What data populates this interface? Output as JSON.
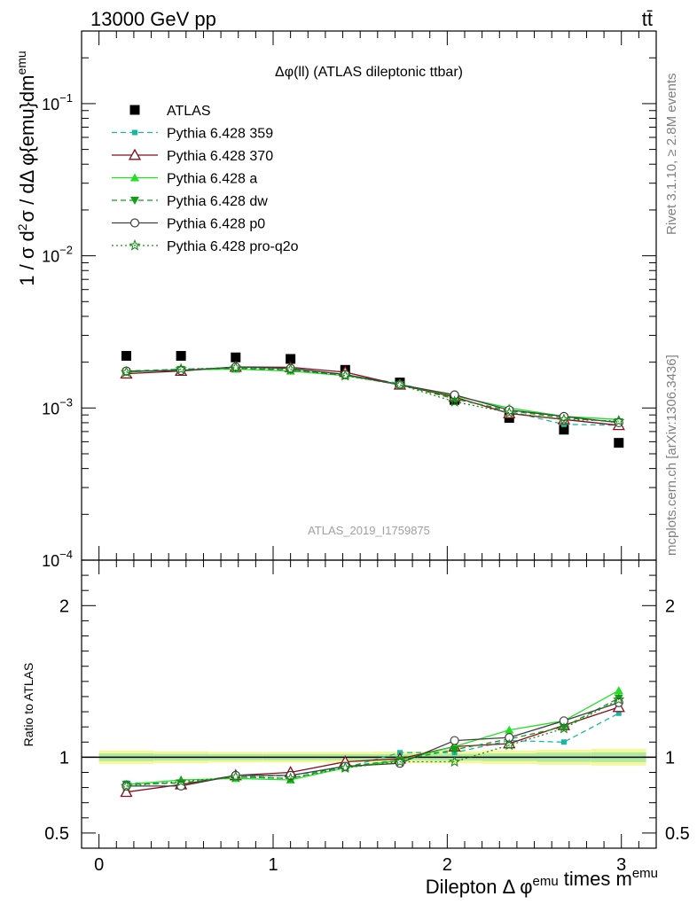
{
  "header": {
    "left_label": "13000 GeV pp",
    "right_label": "tt̄"
  },
  "side_labels": {
    "rivet": "Rivet 3.1.10, ≥ 2.8M events",
    "mcplots": "mcplots.cern.ch [arXiv:1306.3436]"
  },
  "colors": {
    "ATLAS": "#000000",
    "p359": "#17b8a0",
    "p370": "#8b0a1e",
    "pa": "#22e022",
    "pdw": "#0ea017",
    "pp0": "#404040",
    "pq2o": "#1c8a1c",
    "band_inner": "#aeeaa0",
    "band_outer": "#f4f79c"
  },
  "chart_data": [
    {
      "type": "line",
      "panel": "main",
      "title": "Δφ(ll) (ATLAS dileptonic ttbar)",
      "watermark": "ATLAS_2019_I1759875",
      "ylabel": "1 / σ  d²σ / dΔ φ{emu}dm^emu",
      "yscale": "log",
      "ylim": [
        0.0001,
        0.3
      ],
      "xlim": [
        -0.1,
        3.2
      ],
      "y_tick_labels": [
        {
          "value": 0.1,
          "base": "10",
          "exp": "−1"
        },
        {
          "value": 0.01,
          "base": "10",
          "exp": "−2"
        },
        {
          "value": 0.001,
          "base": "10",
          "exp": "−3"
        },
        {
          "value": 0.0001,
          "base": "10",
          "exp": "−4"
        }
      ],
      "x": [
        0.157,
        0.471,
        0.785,
        1.1,
        1.414,
        1.728,
        2.042,
        2.356,
        2.67,
        2.985
      ],
      "series": [
        {
          "key": "ATLAS",
          "name": "ATLAS",
          "marker": "square",
          "dash": "none",
          "values": [
            0.0022,
            0.0022,
            0.00215,
            0.0021,
            0.00178,
            0.00147,
            0.00113,
            0.00086,
            0.00072,
            0.00059
          ]
        },
        {
          "key": "p359",
          "name": "Pythia 6.428 359",
          "marker": "smallsquare",
          "dash": "6,4",
          "values": [
            0.00175,
            0.0018,
            0.00183,
            0.00178,
            0.00165,
            0.00145,
            0.00115,
            0.00095,
            0.00078,
            0.00077
          ]
        },
        {
          "key": "p370",
          "name": "Pythia 6.428 370",
          "marker": "triangle-open",
          "dash": "none",
          "values": [
            0.00168,
            0.00175,
            0.00186,
            0.00185,
            0.00172,
            0.00142,
            0.00118,
            0.00092,
            0.00084,
            0.00077
          ]
        },
        {
          "key": "pa",
          "name": "Pythia 6.428 a",
          "marker": "triangle",
          "dash": "none",
          "values": [
            0.00172,
            0.00178,
            0.0018,
            0.00175,
            0.00163,
            0.00143,
            0.0012,
            0.001,
            0.00088,
            0.00084
          ]
        },
        {
          "key": "pdw",
          "name": "Pythia 6.428 dw",
          "marker": "triangle-down",
          "dash": "6,4",
          "values": [
            0.00173,
            0.00179,
            0.00182,
            0.00177,
            0.00164,
            0.00142,
            0.00115,
            0.00096,
            0.00086,
            0.00081
          ]
        },
        {
          "key": "pp0",
          "name": "Pythia 6.428 p0",
          "marker": "circle-open",
          "dash": "none",
          "values": [
            0.00175,
            0.00176,
            0.00186,
            0.00182,
            0.00166,
            0.00142,
            0.00122,
            0.00097,
            0.00088,
            0.0008
          ]
        },
        {
          "key": "pq2o",
          "name": "Pythia 6.428 pro-q2o",
          "marker": "star",
          "dash": "2,3",
          "values": [
            0.00172,
            0.0018,
            0.00184,
            0.00179,
            0.00163,
            0.00142,
            0.0011,
            0.00093,
            0.00084,
            0.00082
          ]
        }
      ]
    },
    {
      "type": "line",
      "panel": "ratio",
      "ylabel": "Ratio to ATLAS",
      "xlabel": "Dilepton Δ φ^emu times m^emu",
      "ylim": [
        0.4,
        2.3
      ],
      "xlim": [
        -0.1,
        3.2
      ],
      "y_tick_labels": [
        "0.5",
        "1",
        "2"
      ],
      "y_tick_values": [
        0.5,
        1,
        2
      ],
      "x_tick_labels": [
        "0",
        "1",
        "2",
        "3"
      ],
      "x_tick_values": [
        0,
        1,
        2,
        3
      ],
      "x": [
        0.157,
        0.471,
        0.785,
        1.1,
        1.414,
        1.728,
        2.042,
        2.356,
        2.67,
        2.985
      ],
      "bands": {
        "outer_low": [
          0.955,
          0.96,
          0.965,
          0.965,
          0.965,
          0.962,
          0.96,
          0.955,
          0.95,
          0.945
        ],
        "outer_high": [
          1.045,
          1.04,
          1.035,
          1.035,
          1.035,
          1.038,
          1.04,
          1.045,
          1.05,
          1.055
        ],
        "inner_low": [
          0.975,
          0.978,
          0.98,
          0.98,
          0.98,
          0.98,
          0.978,
          0.975,
          0.97,
          0.968
        ],
        "inner_high": [
          1.025,
          1.022,
          1.02,
          1.02,
          1.02,
          1.02,
          1.022,
          1.025,
          1.03,
          1.032
        ]
      },
      "series": [
        {
          "key": "p359",
          "values": [
            0.83,
            0.83,
            0.87,
            0.88,
            0.93,
            1.03,
            1.03,
            1.11,
            1.1,
            1.29
          ]
        },
        {
          "key": "p370",
          "values": [
            0.77,
            0.82,
            0.88,
            0.9,
            0.97,
            0.99,
            1.07,
            1.09,
            1.21,
            1.33
          ]
        },
        {
          "key": "pa",
          "values": [
            0.82,
            0.85,
            0.86,
            0.85,
            0.93,
            0.98,
            1.07,
            1.18,
            1.24,
            1.44
          ]
        },
        {
          "key": "pdw",
          "values": [
            0.82,
            0.83,
            0.87,
            0.86,
            0.94,
            0.98,
            1.05,
            1.12,
            1.2,
            1.39
          ]
        },
        {
          "key": "pp0",
          "values": [
            0.81,
            0.81,
            0.88,
            0.88,
            0.94,
            0.96,
            1.11,
            1.13,
            1.24,
            1.36
          ]
        },
        {
          "key": "pq2o",
          "values": [
            0.81,
            0.84,
            0.87,
            0.86,
            0.93,
            0.97,
            0.97,
            1.08,
            1.19,
            1.38
          ]
        }
      ]
    }
  ]
}
